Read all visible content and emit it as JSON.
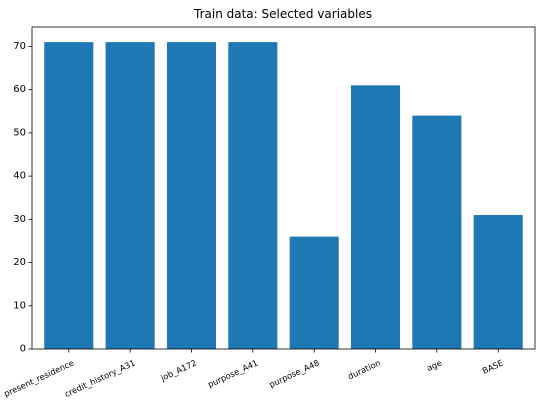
{
  "chart_data": {
    "type": "bar",
    "title": "Train data: Selected variables",
    "xlabel": "",
    "ylabel": "",
    "categories": [
      "present_residence",
      "credit_history_A31",
      "job_A172",
      "purpose_A41",
      "purpose_A48",
      "duration",
      "age",
      "BASE"
    ],
    "values": [
      71,
      71,
      71,
      71,
      26,
      61,
      54,
      31
    ],
    "ylim": [
      0,
      74.5
    ],
    "yticks": [
      0,
      10,
      20,
      30,
      40,
      50,
      60,
      70
    ],
    "bar_color": "#1f77b4",
    "grid": false,
    "legend": "none"
  }
}
